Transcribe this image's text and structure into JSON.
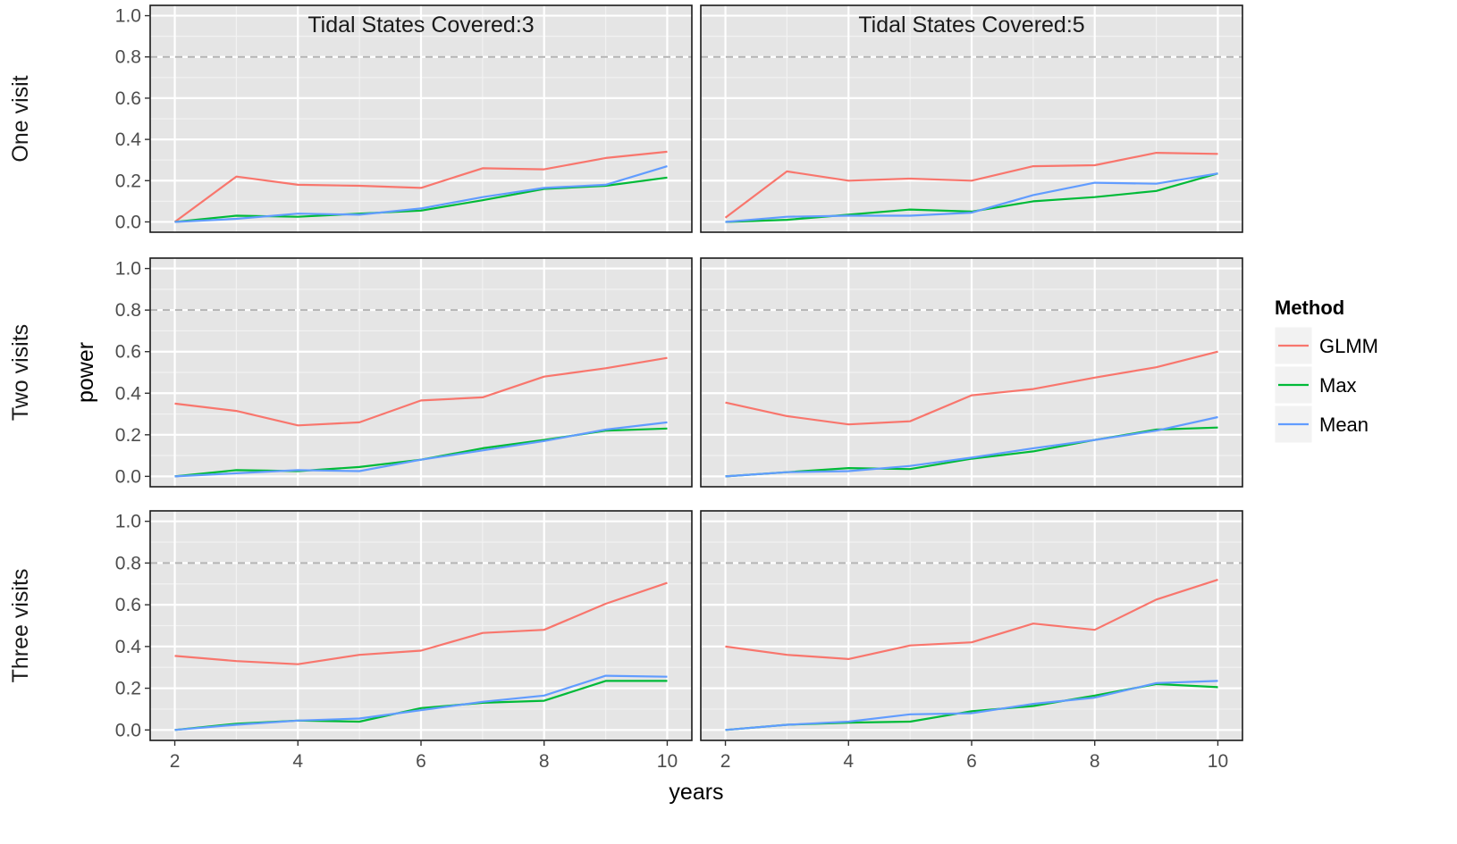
{
  "chart_data": {
    "type": "line",
    "xlabel": "years",
    "ylabel": "power",
    "xlim": [
      1.6,
      10.4
    ],
    "ylim": [
      -0.05,
      1.05
    ],
    "x_ticks": [
      "2",
      "4",
      "6",
      "8",
      "10"
    ],
    "y_ticks": [
      "0.0",
      "0.2",
      "0.4",
      "0.6",
      "0.8",
      "1.0"
    ],
    "reference_line": 0.8,
    "grid": true,
    "legend": {
      "title": "Method",
      "position": "right",
      "items": [
        {
          "name": "GLMM",
          "color": "#F8766D"
        },
        {
          "name": "Max",
          "color": "#00BA38"
        },
        {
          "name": "Mean",
          "color": "#619CFF"
        }
      ]
    },
    "columns": [
      "Tidal States Covered:3",
      "Tidal States Covered:5"
    ],
    "rows": [
      "One visit",
      "Two visits",
      "Three visits"
    ],
    "x": [
      2,
      3,
      4,
      5,
      6,
      7,
      8,
      9,
      10
    ],
    "panels": [
      {
        "row": 0,
        "col": 0,
        "series": [
          {
            "name": "GLMM",
            "values": [
              0.0,
              0.22,
              0.18,
              0.175,
              0.165,
              0.26,
              0.255,
              0.31,
              0.34
            ]
          },
          {
            "name": "Max",
            "values": [
              0.0,
              0.03,
              0.025,
              0.04,
              0.055,
              0.105,
              0.16,
              0.175,
              0.215
            ]
          },
          {
            "name": "Mean",
            "values": [
              0.0,
              0.015,
              0.04,
              0.035,
              0.065,
              0.12,
              0.165,
              0.18,
              0.27
            ]
          }
        ]
      },
      {
        "row": 0,
        "col": 1,
        "series": [
          {
            "name": "GLMM",
            "values": [
              0.02,
              0.245,
              0.2,
              0.21,
              0.2,
              0.27,
              0.275,
              0.335,
              0.33
            ]
          },
          {
            "name": "Max",
            "values": [
              0.0,
              0.01,
              0.035,
              0.06,
              0.05,
              0.1,
              0.12,
              0.15,
              0.235
            ]
          },
          {
            "name": "Mean",
            "values": [
              0.0,
              0.025,
              0.03,
              0.03,
              0.045,
              0.13,
              0.19,
              0.185,
              0.235
            ]
          }
        ]
      },
      {
        "row": 1,
        "col": 0,
        "series": [
          {
            "name": "GLMM",
            "values": [
              0.35,
              0.315,
              0.245,
              0.26,
              0.365,
              0.38,
              0.48,
              0.52,
              0.57
            ]
          },
          {
            "name": "Max",
            "values": [
              0.0,
              0.03,
              0.025,
              0.045,
              0.08,
              0.135,
              0.175,
              0.22,
              0.23
            ]
          },
          {
            "name": "Mean",
            "values": [
              0.0,
              0.015,
              0.03,
              0.025,
              0.08,
              0.125,
              0.17,
              0.225,
              0.26
            ]
          }
        ]
      },
      {
        "row": 1,
        "col": 1,
        "series": [
          {
            "name": "GLMM",
            "values": [
              0.355,
              0.29,
              0.25,
              0.265,
              0.39,
              0.42,
              0.475,
              0.525,
              0.6
            ]
          },
          {
            "name": "Max",
            "values": [
              0.0,
              0.02,
              0.04,
              0.035,
              0.085,
              0.12,
              0.175,
              0.225,
              0.235
            ]
          },
          {
            "name": "Mean",
            "values": [
              0.0,
              0.02,
              0.025,
              0.05,
              0.09,
              0.135,
              0.175,
              0.22,
              0.285
            ]
          }
        ]
      },
      {
        "row": 2,
        "col": 0,
        "series": [
          {
            "name": "GLMM",
            "values": [
              0.355,
              0.33,
              0.315,
              0.36,
              0.38,
              0.465,
              0.48,
              0.605,
              0.705
            ]
          },
          {
            "name": "Max",
            "values": [
              0.0,
              0.03,
              0.045,
              0.04,
              0.105,
              0.13,
              0.14,
              0.235,
              0.235
            ]
          },
          {
            "name": "Mean",
            "values": [
              0.0,
              0.025,
              0.045,
              0.055,
              0.095,
              0.135,
              0.165,
              0.26,
              0.255
            ]
          }
        ]
      },
      {
        "row": 2,
        "col": 1,
        "series": [
          {
            "name": "GLMM",
            "values": [
              0.4,
              0.36,
              0.34,
              0.405,
              0.42,
              0.51,
              0.48,
              0.625,
              0.72
            ]
          },
          {
            "name": "Max",
            "values": [
              0.0,
              0.025,
              0.035,
              0.04,
              0.09,
              0.115,
              0.165,
              0.22,
              0.205
            ]
          },
          {
            "name": "Mean",
            "values": [
              0.0,
              0.025,
              0.04,
              0.075,
              0.08,
              0.125,
              0.155,
              0.225,
              0.235
            ]
          }
        ]
      }
    ]
  }
}
